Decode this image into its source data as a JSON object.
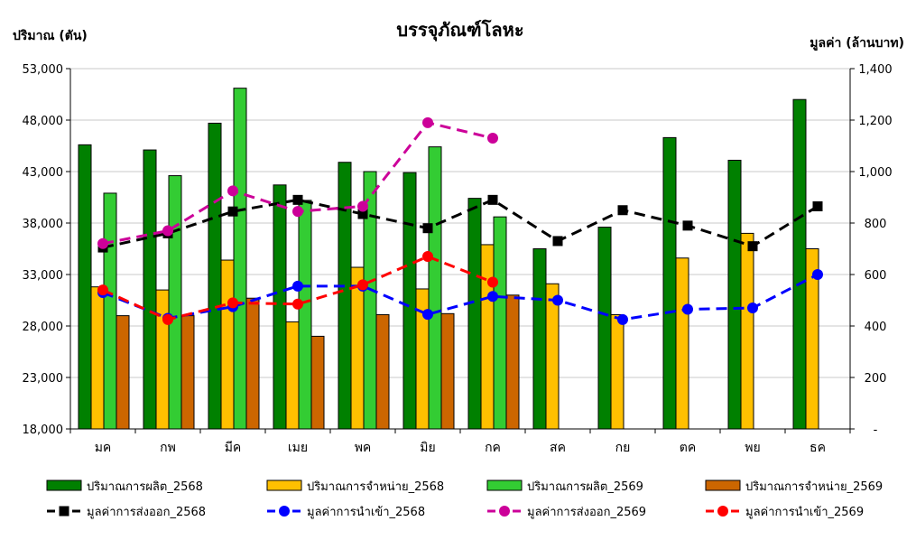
{
  "chart_data": {
    "type": "bar",
    "title": "บรรจุภัณฑ์โลหะ",
    "ylabel_left": "ปริมาณ (ตัน)",
    "ylabel_right": "มูลค่า (ล้านบาท)",
    "ylim_left": [
      18000,
      53000
    ],
    "ylim_right": [
      0,
      1400
    ],
    "yticks_left": [
      "18,000",
      "23,000",
      "28,000",
      "33,000",
      "38,000",
      "43,000",
      "48,000",
      "53,000"
    ],
    "yticks_right": [
      "-",
      "200",
      "400",
      "600",
      "800",
      "1,000",
      "1,200",
      "1,400"
    ],
    "categories": [
      "มค",
      "กพ",
      "มีค",
      "เมย",
      "พค",
      "มิย",
      "กค",
      "สค",
      "กย",
      "ตค",
      "พย",
      "ธค"
    ],
    "bar_series": [
      {
        "name": "ปริมาณการผลิต_2568",
        "color": "#008000",
        "values": [
          45600,
          45100,
          47700,
          41700,
          43900,
          42900,
          40400,
          35500,
          37600,
          46300,
          44100,
          50000
        ]
      },
      {
        "name": "ปริมาณการจำหน่าย_2568",
        "color": "#FFC000",
        "values": [
          31800,
          31500,
          34400,
          28400,
          33700,
          31600,
          35900,
          32100,
          29100,
          34600,
          37000,
          35500
        ]
      },
      {
        "name": "ปริมาณการผลิต_2569",
        "color": "#33CC33",
        "values": [
          40900,
          42600,
          51100,
          40200,
          43000,
          45400,
          38600,
          null,
          null,
          null,
          null,
          null
        ]
      },
      {
        "name": "ปริมาณการจำหน่าย_2569",
        "color": "#CC6600",
        "values": [
          29000,
          29000,
          30700,
          27000,
          29100,
          29200,
          31000,
          null,
          null,
          null,
          null,
          null
        ]
      }
    ],
    "line_series": [
      {
        "name": "มูลค่าการส่งออก_2568",
        "color": "#000000",
        "marker": "square",
        "values": [
          705,
          760,
          845,
          890,
          835,
          780,
          890,
          730,
          850,
          790,
          710,
          865
        ]
      },
      {
        "name": "มูลค่าการนำเข้า_2568",
        "color": "#0000FF",
        "marker": "circle",
        "values": [
          530,
          430,
          475,
          555,
          555,
          445,
          515,
          500,
          425,
          465,
          470,
          600
        ]
      },
      {
        "name": "มูลค่าการส่งออก_2569",
        "color": "#CC0099",
        "marker": "circle",
        "values": [
          720,
          770,
          925,
          845,
          865,
          1190,
          1130,
          null,
          null,
          null,
          null,
          null
        ]
      },
      {
        "name": "มูลค่าการนำเข้า_2569",
        "color": "#FF0000",
        "marker": "circle",
        "values": [
          540,
          425,
          490,
          485,
          560,
          670,
          570,
          null,
          null,
          null,
          null,
          null
        ]
      }
    ],
    "grid": "horizontal",
    "legend_placement": "bottom"
  }
}
